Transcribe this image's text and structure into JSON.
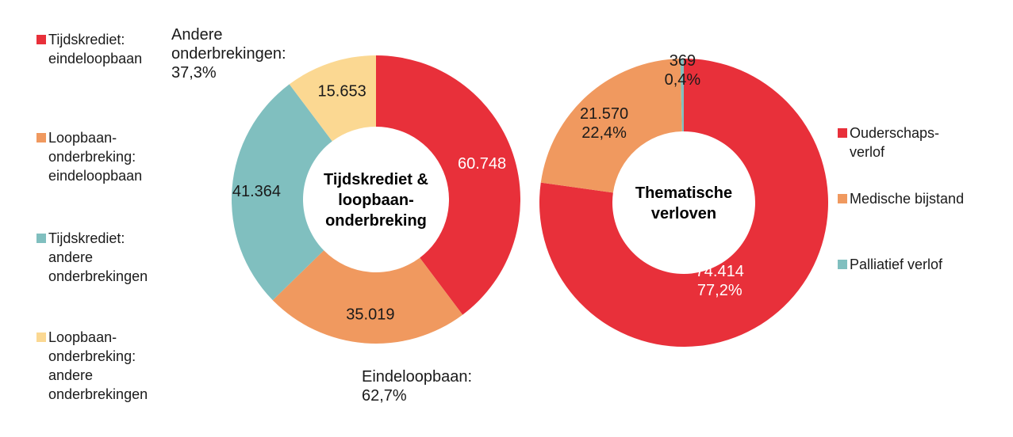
{
  "chart_data": [
    {
      "type": "pie",
      "donut": true,
      "title": "Tijdskrediet & loopbaan-onderbreking",
      "title_lines": [
        "Tijdskrediet &",
        "loopbaan-",
        "onderbreking"
      ],
      "slices": [
        {
          "name": "Tijdskrediet: eindeloopbaan",
          "legend_lines": "Tijdskrediet:\neindeloopbaan",
          "value": 60748,
          "label": "60.748",
          "color": "#e8303a",
          "label_color": "#ffffff"
        },
        {
          "name": "Loopbaan-onderbreking: eindeloopbaan",
          "legend_lines": "Loopbaan-\nonderbreking:\neindeloopbaan",
          "value": 35019,
          "label": "35.019",
          "color": "#f0995f",
          "label_color": "#1a1a1a"
        },
        {
          "name": "Tijdskrediet: andere onderbrekingen",
          "legend_lines": "Tijdskrediet:\nandere\nonderbrekingen",
          "value": 41364,
          "label": "41.364",
          "color": "#80bfbf",
          "label_color": "#1a1a1a"
        },
        {
          "name": "Loopbaan-onderbreking: andere onderbrekingen",
          "legend_lines": "Loopbaan-\nonderbreking:\nandere\nonderbrekingen",
          "value": 15653,
          "label": "15.653",
          "color": "#fbd892",
          "label_color": "#1a1a1a"
        }
      ],
      "callouts": {
        "andere": "Andere\nonderbrekingen:\n37,3%",
        "eindeloopbaan": "Eindeloopbaan:\n62,7%"
      },
      "legend_position": "left"
    },
    {
      "type": "pie",
      "donut": true,
      "title": "Thematische verloven",
      "title_lines": [
        "Thematische",
        "verloven"
      ],
      "slices": [
        {
          "name": "Ouderschaps-verlof",
          "legend_lines": "Ouderschaps-\nverlof",
          "value": 74414,
          "label": "74.414",
          "pct": "77,2%",
          "color": "#e8303a",
          "label_color": "#ffffff"
        },
        {
          "name": "Medische bijstand",
          "legend_lines": "Medische bijstand",
          "value": 21570,
          "label": "21.570",
          "pct": "22,4%",
          "color": "#f0995f",
          "label_color": "#1a1a1a"
        },
        {
          "name": "Palliatief verlof",
          "legend_lines": "Palliatief verlof",
          "value": 369,
          "label": "369",
          "pct": "0,4%",
          "color": "#80bfbf",
          "label_color": "#1a1a1a"
        }
      ],
      "legend_position": "right"
    }
  ]
}
